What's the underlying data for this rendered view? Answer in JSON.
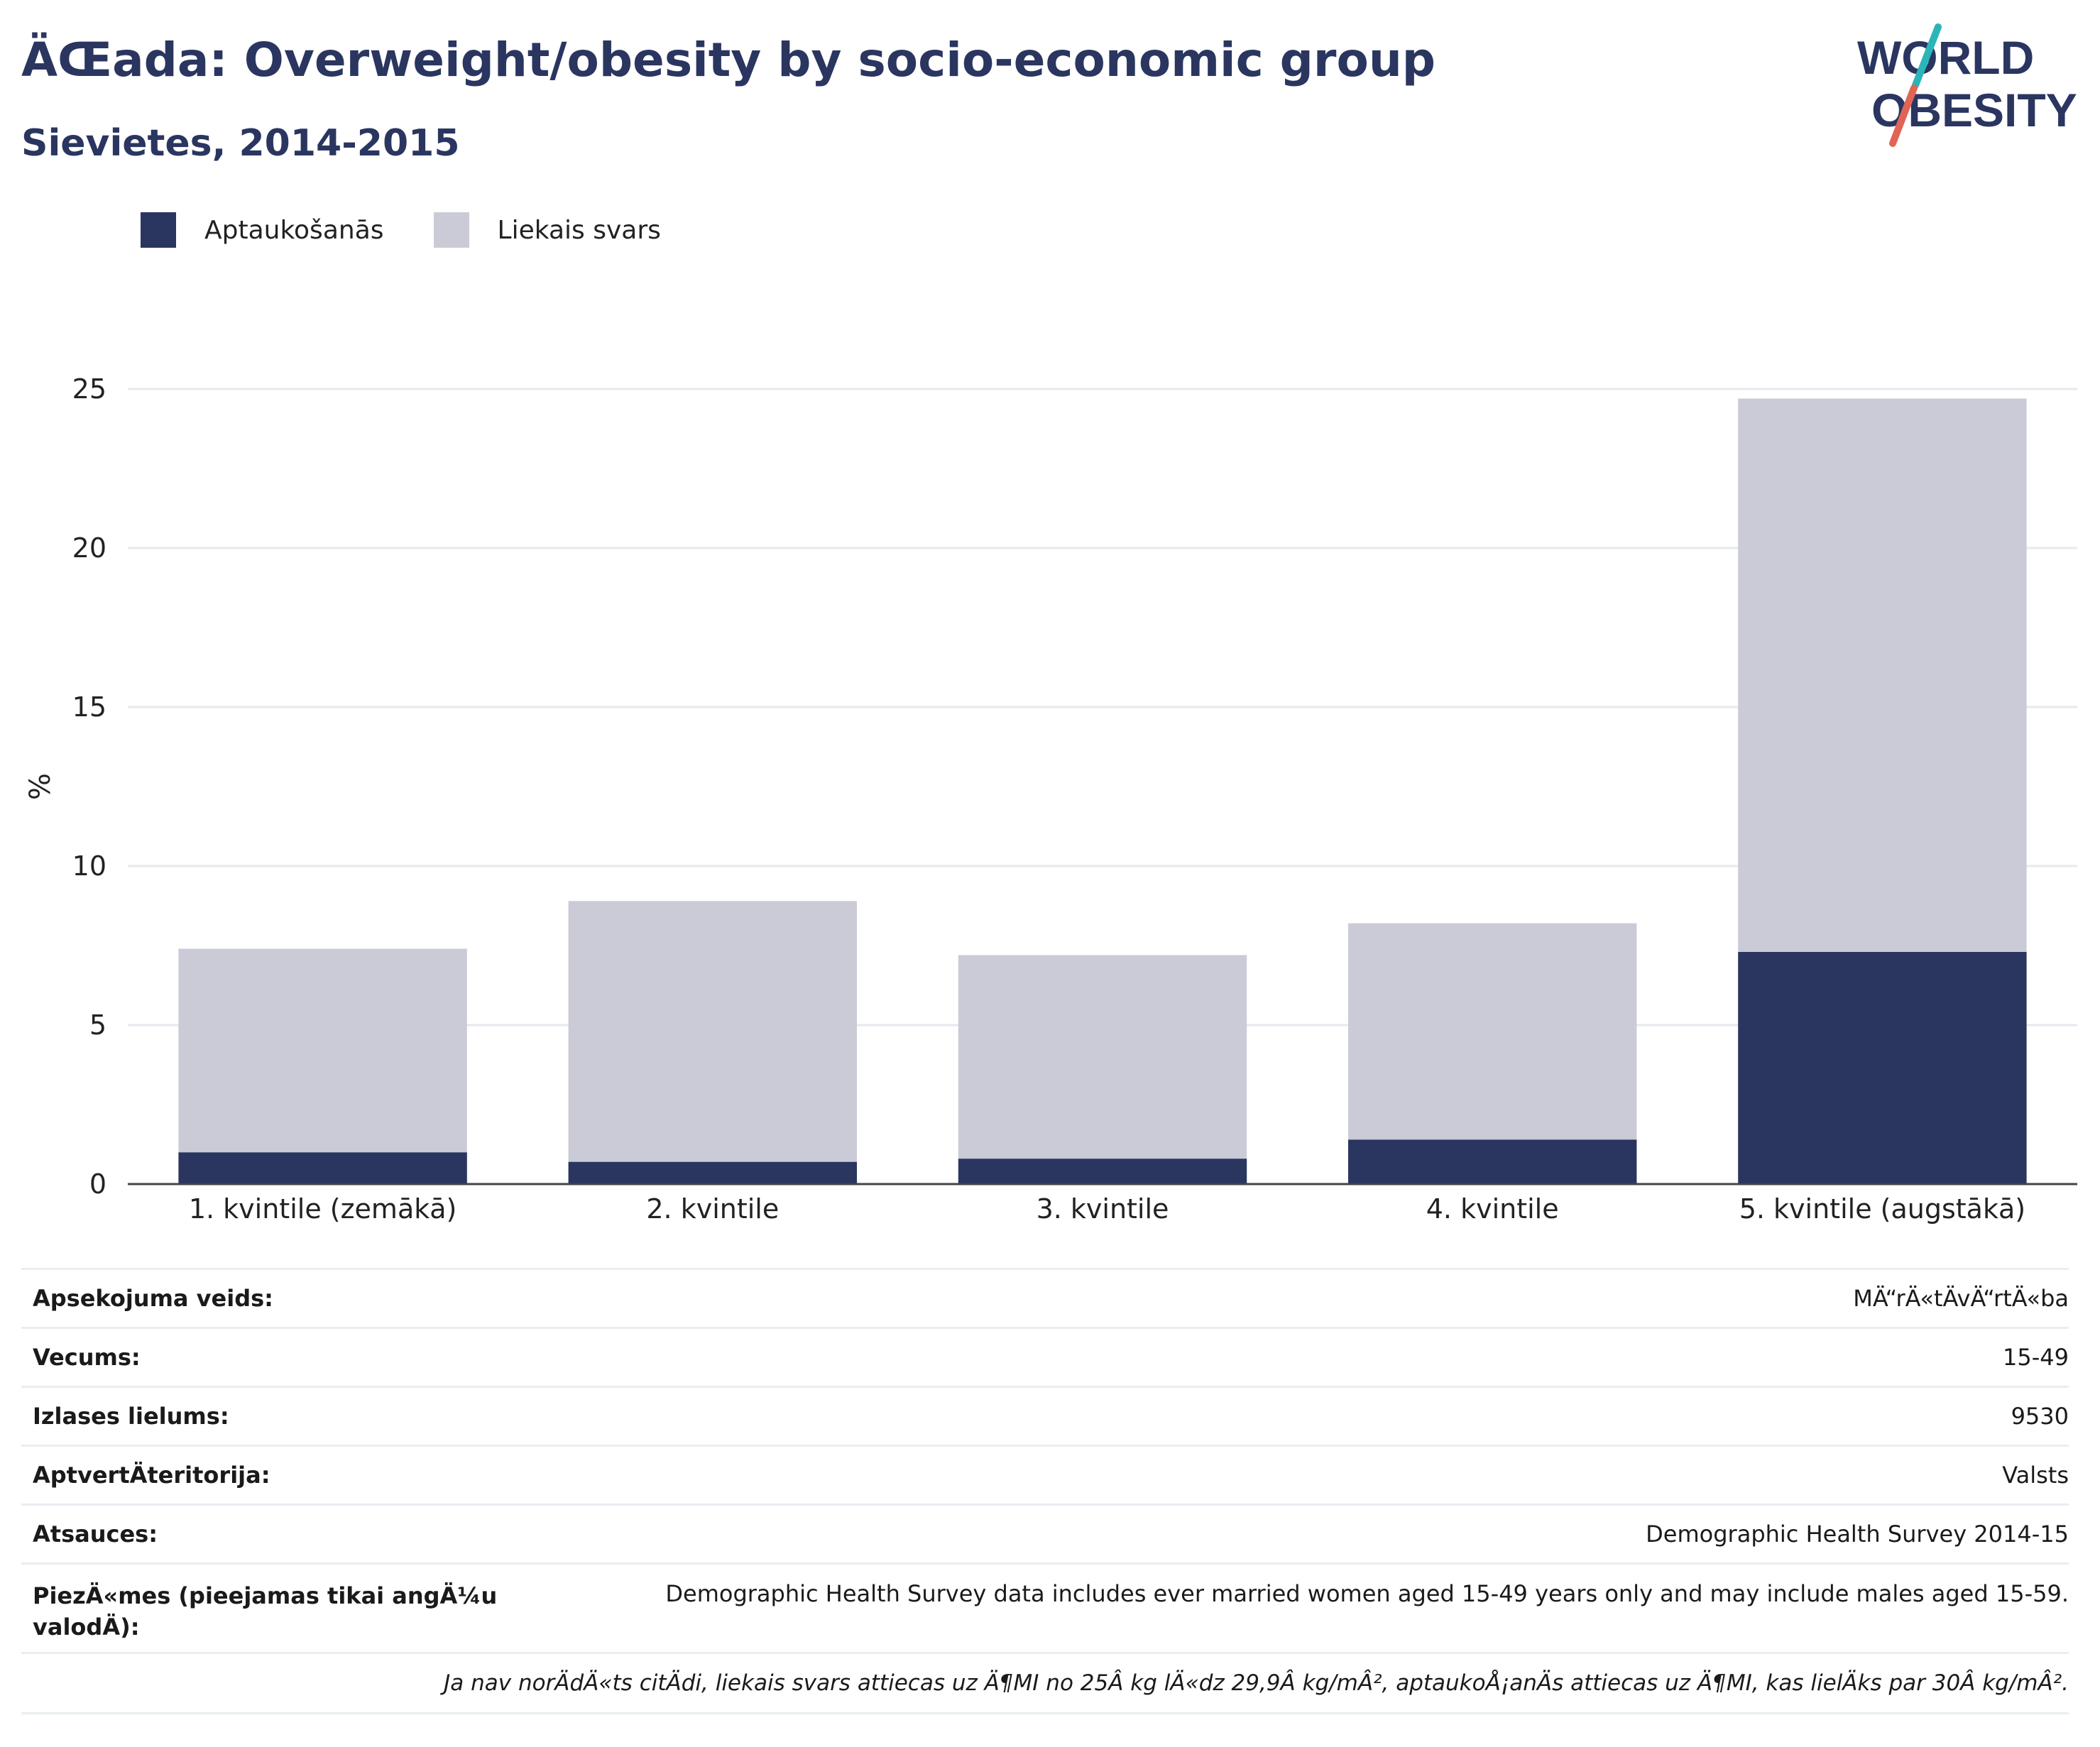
{
  "header": {
    "title": "ÄŒada: Overweight/obesity by socio-economic group",
    "subtitle": "Sievietes, 2014-2015",
    "logo_line1": "WORLD",
    "logo_line2": "OBESITY"
  },
  "colors": {
    "obesity": "#2a3660",
    "overweight": "#cacbd6",
    "title": "#2a3660",
    "logo_slash_teal": "#2bb5b8",
    "logo_slash_red": "#e06555"
  },
  "legend": [
    {
      "label": "Aptaukošanās",
      "color": "#2a3660"
    },
    {
      "label": "Liekais svars",
      "color": "#cacbd6"
    }
  ],
  "chart_data": {
    "type": "bar",
    "stacked": true,
    "categories": [
      "1. kvintile (zemākā)",
      "2. kvintile",
      "3. kvintile",
      "4. kvintile",
      "5. kvintile (augstākā)"
    ],
    "series": [
      {
        "name": "Aptaukošanās",
        "values": [
          1.0,
          0.7,
          0.8,
          1.4,
          7.3
        ]
      },
      {
        "name": "Liekais svars",
        "values": [
          6.4,
          8.2,
          6.4,
          6.8,
          17.4
        ]
      }
    ],
    "title": "ÄŒada: Overweight/obesity by socio-economic group",
    "subtitle": "Sievietes, 2014-2015",
    "xlabel": "",
    "ylabel": "%",
    "ylim": [
      0,
      25
    ],
    "yticks": [
      0,
      5,
      10,
      15,
      20,
      25
    ],
    "grid": true,
    "legend_position": "top-left"
  },
  "info": [
    {
      "label": "Apsekojuma veids:",
      "value": "MÄ“rÄ«tÄvÄ“rtÄ«ba"
    },
    {
      "label": "Vecums:",
      "value": "15-49"
    },
    {
      "label": "Izlases lielums:",
      "value": "9530"
    },
    {
      "label": "AptvertÄteritorija:",
      "value": "Valsts"
    },
    {
      "label": "Atsauces:",
      "value": "Demographic Health Survey 2014-15"
    },
    {
      "label": "PiezÄ«mes (pieejamas tikai angÄ¼u valodÄ):",
      "value": "Demographic Health Survey data includes ever married women aged 15-49 years only and may include males aged 15-59."
    }
  ],
  "footnote": "Ja nav norÄdÄ«ts citÄdi, liekais svars attiecas uz Ä¶MI no 25Â kg lÄ«dz 29,9Â kg/mÂ², aptaukoÅ¡anÄs attiecas uz Ä¶MI, kas lielÄks par 30Â kg/mÂ²."
}
